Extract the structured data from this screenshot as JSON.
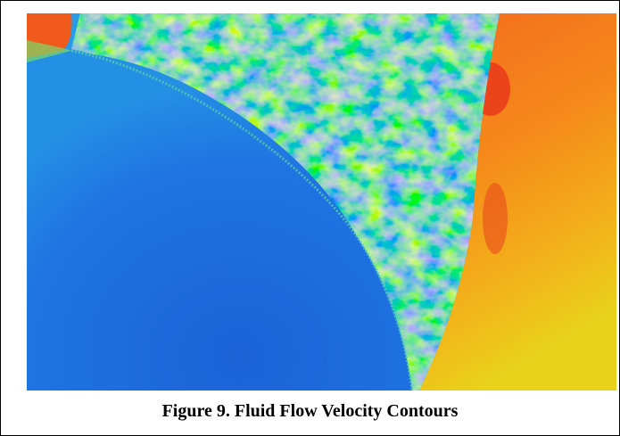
{
  "figure": {
    "caption": "Figure 9. Fluid Flow Velocity Contours"
  }
}
